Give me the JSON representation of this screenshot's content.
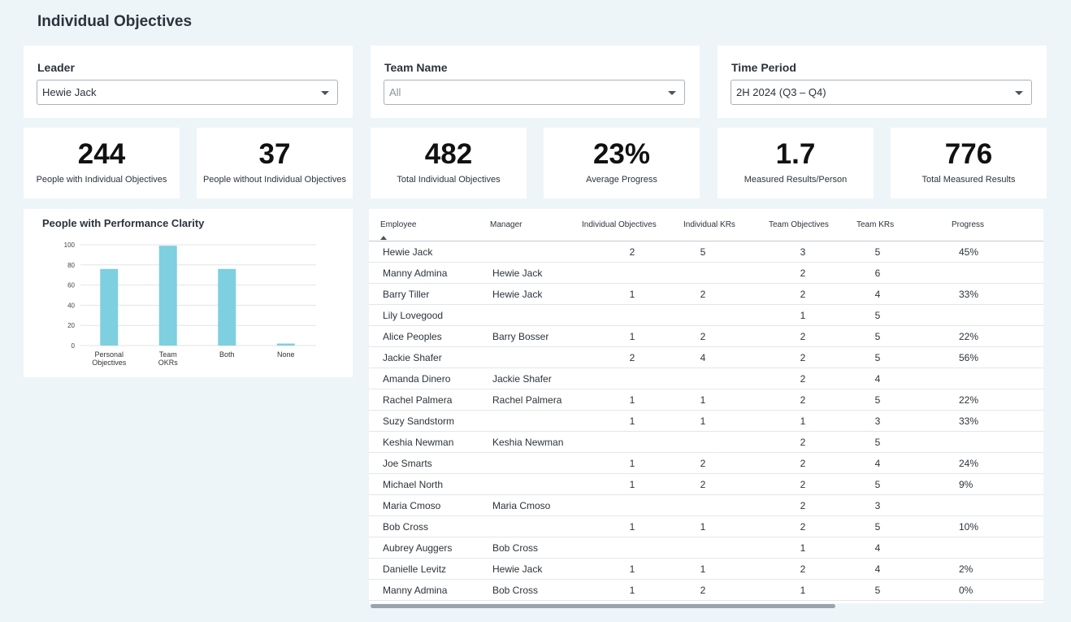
{
  "page": {
    "title": "Individual Objectives"
  },
  "filters": {
    "leader": {
      "label": "Leader",
      "value": "Hewie Jack"
    },
    "team": {
      "label": "Team Name",
      "value": "All"
    },
    "period": {
      "label": "Time Period",
      "value": "2H 2024 (Q3 – Q4)"
    }
  },
  "stats": [
    {
      "value": "244",
      "label": "People with Individual Objectives"
    },
    {
      "value": "37",
      "label": "People without Individual Objectives"
    },
    {
      "value": "482",
      "label": "Total Individual Objectives"
    },
    {
      "value": "23%",
      "label": "Average Progress"
    },
    {
      "value": "1.7",
      "label": "Measured Results/Person"
    },
    {
      "value": "776",
      "label": "Total Measured Results"
    }
  ],
  "chart_title": "People with Performance Clarity",
  "chart_data": {
    "type": "bar",
    "title": "People with Performance Clarity",
    "categories": [
      [
        "Personal",
        "Objectives"
      ],
      [
        "Team",
        "OKRs"
      ],
      [
        "Both"
      ],
      [
        "None"
      ]
    ],
    "values": [
      76,
      99,
      76,
      2
    ],
    "ylim": [
      0,
      100
    ],
    "yticks": [
      0,
      20,
      40,
      60,
      80,
      100
    ],
    "grid": true,
    "bar_color": "#7ecfdf"
  },
  "table": {
    "columns": {
      "employee": "Employee",
      "manager": "Manager",
      "ind_obj": "Individual Objectives",
      "ind_krs": "Individual KRs",
      "team_obj": "Team Objectives",
      "team_krs": "Team KRs",
      "progress": "Progress"
    },
    "rows": [
      {
        "employee": "Hewie Jack",
        "manager": "",
        "ind_obj": "2",
        "ind_krs": "5",
        "team_obj": "3",
        "team_krs": "5",
        "progress": "45%"
      },
      {
        "employee": "Manny Admina",
        "manager": "Hewie Jack",
        "ind_obj": "",
        "ind_krs": "",
        "team_obj": "2",
        "team_krs": "6",
        "progress": ""
      },
      {
        "employee": "Barry Tiller",
        "manager": "Hewie Jack",
        "ind_obj": "1",
        "ind_krs": "2",
        "team_obj": "2",
        "team_krs": "4",
        "progress": "33%"
      },
      {
        "employee": "Lily Lovegood",
        "manager": "",
        "ind_obj": "",
        "ind_krs": "",
        "team_obj": "1",
        "team_krs": "5",
        "progress": ""
      },
      {
        "employee": "Alice Peoples",
        "manager": "Barry Bosser",
        "ind_obj": "1",
        "ind_krs": "2",
        "team_obj": "2",
        "team_krs": "5",
        "progress": "22%"
      },
      {
        "employee": "Jackie Shafer",
        "manager": "",
        "ind_obj": "2",
        "ind_krs": "4",
        "team_obj": "2",
        "team_krs": "5",
        "progress": "56%"
      },
      {
        "employee": "Amanda Dinero",
        "manager": "Jackie Shafer",
        "ind_obj": "",
        "ind_krs": "",
        "team_obj": "2",
        "team_krs": "4",
        "progress": ""
      },
      {
        "employee": "Rachel Palmera",
        "manager": "Rachel Palmera",
        "ind_obj": "1",
        "ind_krs": "1",
        "team_obj": "2",
        "team_krs": "5",
        "progress": "22%"
      },
      {
        "employee": "Suzy Sandstorm",
        "manager": "",
        "ind_obj": "1",
        "ind_krs": "1",
        "team_obj": "1",
        "team_krs": "3",
        "progress": "33%"
      },
      {
        "employee": "Keshia Newman",
        "manager": "Keshia Newman",
        "ind_obj": "",
        "ind_krs": "",
        "team_obj": "2",
        "team_krs": "5",
        "progress": ""
      },
      {
        "employee": "Joe Smarts",
        "manager": "",
        "ind_obj": "1",
        "ind_krs": "2",
        "team_obj": "2",
        "team_krs": "4",
        "progress": "24%"
      },
      {
        "employee": "Michael North",
        "manager": "",
        "ind_obj": "1",
        "ind_krs": "2",
        "team_obj": "2",
        "team_krs": "5",
        "progress": "9%"
      },
      {
        "employee": "Maria Cmoso",
        "manager": "Maria Cmoso",
        "ind_obj": "",
        "ind_krs": "",
        "team_obj": "2",
        "team_krs": "3",
        "progress": ""
      },
      {
        "employee": "Bob Cross",
        "manager": "",
        "ind_obj": "1",
        "ind_krs": "1",
        "team_obj": "2",
        "team_krs": "5",
        "progress": "10%"
      },
      {
        "employee": "Aubrey Auggers",
        "manager": "Bob Cross",
        "ind_obj": "",
        "ind_krs": "",
        "team_obj": "1",
        "team_krs": "4",
        "progress": ""
      },
      {
        "employee": "Danielle Levitz",
        "manager": "Hewie Jack",
        "ind_obj": "1",
        "ind_krs": "1",
        "team_obj": "2",
        "team_krs": "4",
        "progress": "2%"
      },
      {
        "employee": "Manny Admina",
        "manager": "Bob Cross",
        "ind_obj": "1",
        "ind_krs": "2",
        "team_obj": "1",
        "team_krs": "5",
        "progress": "0%"
      }
    ]
  }
}
